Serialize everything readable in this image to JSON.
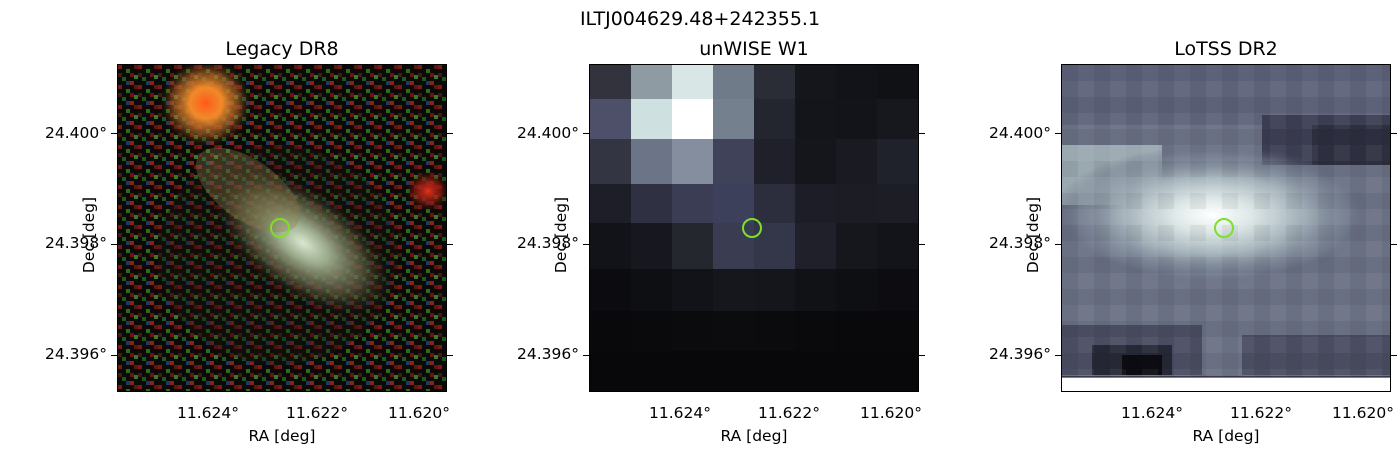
{
  "figure": {
    "title": "ILTJ004629.48+242355.1"
  },
  "panels": [
    {
      "title": "Legacy DR8",
      "ylabel": "Dec [deg]",
      "xlabel": "RA [deg]",
      "yticks": [
        "24.400°",
        "24.398°",
        "24.396°"
      ],
      "xticks": [
        "11.624°",
        "11.622°",
        "11.620°"
      ]
    },
    {
      "title": "unWISE W1",
      "ylabel": "Dec [deg]",
      "xlabel": "RA [deg]",
      "yticks": [
        "24.400°",
        "24.398°",
        "24.396°"
      ],
      "xticks": [
        "11.624°",
        "11.622°",
        "11.620°"
      ]
    },
    {
      "title": "LoTSS DR2",
      "ylabel": "Dec [deg]",
      "xlabel": "RA [deg]",
      "yticks": [
        "24.400°",
        "24.398°",
        "24.396°"
      ],
      "xticks": [
        "11.624°",
        "11.622°",
        "11.620°"
      ]
    }
  ],
  "marker": {
    "ra": 11.6226,
    "dec": 24.3983,
    "color": "#7ee02a"
  },
  "colors": {
    "axes": "#000000",
    "background": "#ffffff"
  }
}
